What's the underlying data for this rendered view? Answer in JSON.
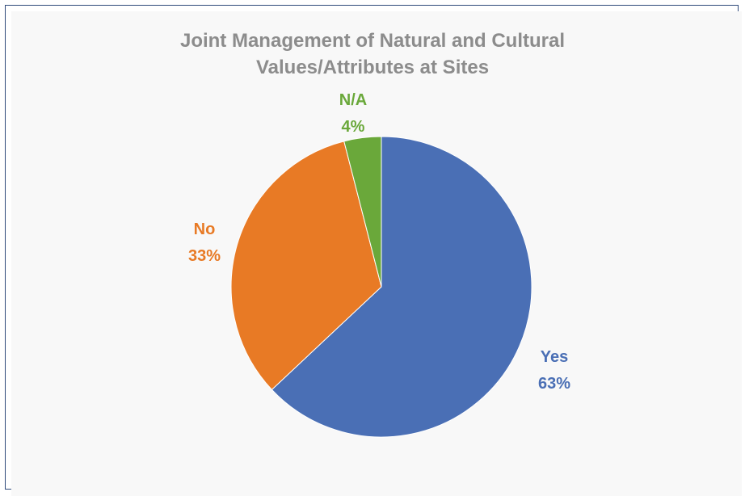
{
  "chart_data": {
    "type": "pie",
    "title_lines": [
      "Joint Management of Natural and Cultural",
      "Values/Attributes at Sites"
    ],
    "slices": [
      {
        "label": "Yes",
        "value": 63,
        "value_label": "63%",
        "color": "#4a6fb5"
      },
      {
        "label": "No",
        "value": 33,
        "value_label": "33%",
        "color": "#e87a25"
      },
      {
        "label": "N/A",
        "value": 4,
        "value_label": "4%",
        "color": "#6aa83a"
      }
    ],
    "start": "12 o'clock",
    "direction": "clockwise",
    "legend": "none",
    "data_labels": "outside slices, colored as slice"
  }
}
